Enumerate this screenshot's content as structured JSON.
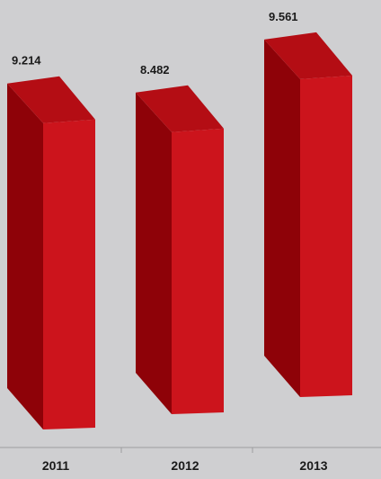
{
  "chart_data": {
    "type": "bar",
    "categories": [
      "2011",
      "2012",
      "2013"
    ],
    "values": [
      9.214,
      8.482,
      9.561
    ],
    "value_labels": [
      "9.214",
      "8.482",
      "9.561"
    ],
    "title": "",
    "xlabel": "",
    "ylabel": "",
    "grid": false,
    "legend": "none",
    "colors": {
      "bar_front": "#cc141c",
      "bar_side": "#8e0208",
      "bar_top": "#b40d14",
      "background": "#cfcfd1",
      "axis": "#9e9ea0"
    }
  }
}
